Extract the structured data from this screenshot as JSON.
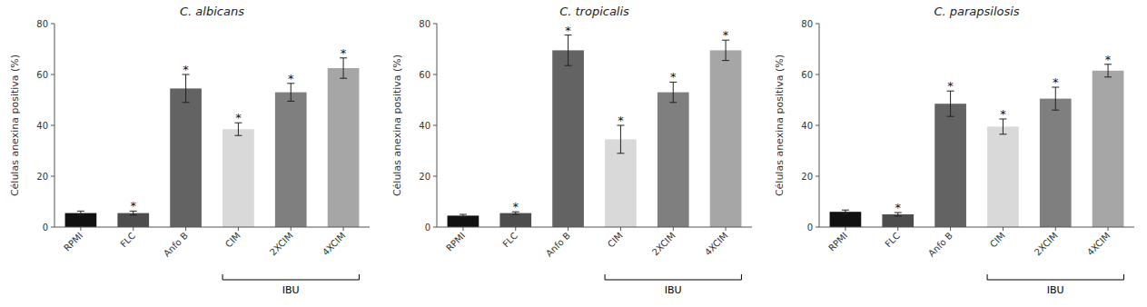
{
  "chart_data": [
    {
      "type": "bar",
      "title": "C. albicans",
      "ylabel": "Células anexina positiva (%)",
      "categories": [
        "RPMI",
        "FLC",
        "Anfo B",
        "CIM",
        "2XCIM",
        "4XCIM"
      ],
      "values": [
        5.5,
        5.5,
        54.5,
        38.5,
        53.0,
        62.5
      ],
      "errors": [
        0.8,
        0.8,
        5.5,
        2.5,
        3.5,
        4.0
      ],
      "colors": [
        "#111111",
        "#4d4d4d",
        "#636363",
        "#d9d9d9",
        "#7f7f7f",
        "#a6a6a6"
      ],
      "ylim": [
        0,
        80
      ],
      "yticks": [
        0,
        20,
        40,
        60,
        80
      ],
      "grid": false,
      "annotations": [
        {
          "text": "*",
          "category": "FLC"
        },
        {
          "text": "*",
          "category": "Anfo B"
        },
        {
          "text": "*",
          "category": "CIM"
        },
        {
          "text": "*",
          "category": "2XCIM"
        },
        {
          "text": "*",
          "category": "4XCIM"
        },
        {
          "text": "IBU",
          "from": "CIM",
          "to": "4XCIM"
        }
      ]
    },
    {
      "type": "bar",
      "title": "C. tropicalis",
      "ylabel": "Células anexina positiva (%)",
      "categories": [
        "RPMI",
        "FLC",
        "Anfo B",
        "CIM",
        "2XCIM",
        "4XCIM"
      ],
      "values": [
        4.5,
        5.5,
        69.5,
        34.5,
        53.0,
        69.5
      ],
      "errors": [
        0.5,
        0.5,
        6.0,
        5.5,
        4.0,
        4.0
      ],
      "colors": [
        "#111111",
        "#4d4d4d",
        "#636363",
        "#d9d9d9",
        "#7f7f7f",
        "#a6a6a6"
      ],
      "ylim": [
        0,
        80
      ],
      "yticks": [
        0,
        20,
        40,
        60,
        80
      ],
      "grid": false,
      "annotations": [
        {
          "text": "*",
          "category": "FLC"
        },
        {
          "text": "*",
          "category": "Anfo B"
        },
        {
          "text": "*",
          "category": "CIM"
        },
        {
          "text": "*",
          "category": "2XCIM"
        },
        {
          "text": "*",
          "category": "4XCIM"
        },
        {
          "text": "IBU",
          "from": "CIM",
          "to": "4XCIM"
        }
      ]
    },
    {
      "type": "bar",
      "title": "C. parapsilosis",
      "ylabel": "Células anexina positiva (%)",
      "categories": [
        "RPMI",
        "FLC",
        "Anfo B",
        "CIM",
        "2XCIM",
        "4XCIM"
      ],
      "values": [
        6.0,
        5.0,
        48.5,
        39.5,
        50.5,
        61.5
      ],
      "errors": [
        0.7,
        0.7,
        5.0,
        3.0,
        4.5,
        2.5
      ],
      "colors": [
        "#111111",
        "#4d4d4d",
        "#636363",
        "#d9d9d9",
        "#7f7f7f",
        "#a6a6a6"
      ],
      "ylim": [
        0,
        80
      ],
      "yticks": [
        0,
        20,
        40,
        60,
        80
      ],
      "grid": false,
      "annotations": [
        {
          "text": "*",
          "category": "FLC"
        },
        {
          "text": "*",
          "category": "Anfo B"
        },
        {
          "text": "*",
          "category": "CIM"
        },
        {
          "text": "*",
          "category": "2XCIM"
        },
        {
          "text": "*",
          "category": "4XCIM"
        },
        {
          "text": "IBU",
          "from": "CIM",
          "to": "4XCIM"
        }
      ]
    }
  ]
}
